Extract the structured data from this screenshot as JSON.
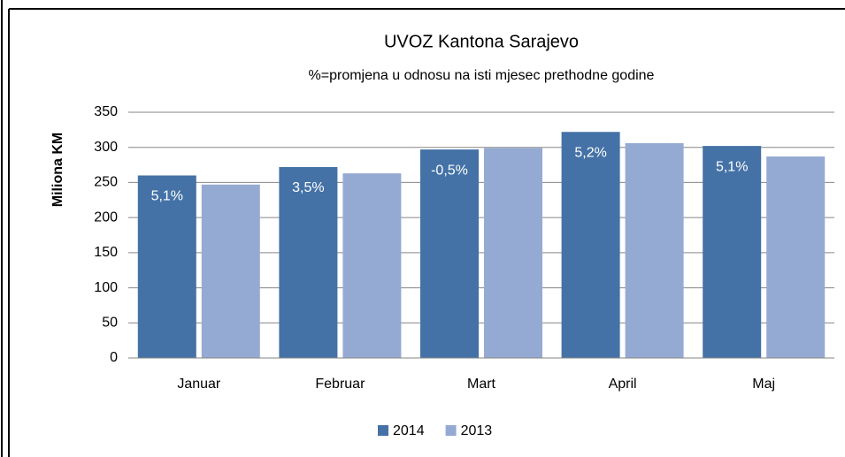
{
  "chart_data": {
    "type": "bar",
    "title": "UVOZ Kantona Sarajevo",
    "subtitle": "%=promjena u odnosu na isti mjesec prethodne godine",
    "y_label": "Miliona KM",
    "categories": [
      "Januar",
      "Februar",
      "Mart",
      "April",
      "Maj"
    ],
    "series": [
      {
        "name": "2014",
        "color": "#4472a6",
        "values": [
          260,
          272,
          297,
          322,
          302
        ],
        "annotations": [
          "5,1%",
          "3,5%",
          "-0,5%",
          "5,2%",
          "5,1%"
        ]
      },
      {
        "name": "2013",
        "color": "#95aad3",
        "values": [
          247,
          263,
          299,
          306,
          287
        ]
      }
    ],
    "ylim": [
      0,
      350
    ],
    "yticks": [
      0,
      50,
      100,
      150,
      200,
      250,
      300,
      350
    ],
    "grid": true,
    "legend": "bottom"
  }
}
